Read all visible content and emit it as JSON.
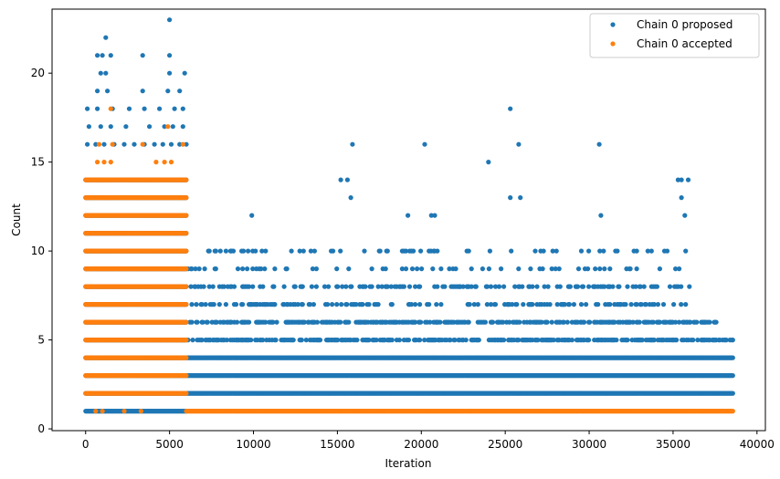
{
  "chart_data": {
    "type": "scatter",
    "title": "",
    "xlabel": "Iteration",
    "ylabel": "Count",
    "xlim": [
      -2000,
      40500
    ],
    "ylim": [
      -0.1,
      23.6
    ],
    "xticks": [
      0,
      5000,
      10000,
      15000,
      20000,
      25000,
      30000,
      35000,
      40000
    ],
    "yticks": [
      0,
      5,
      10,
      15,
      20
    ],
    "legend_position": "top-right",
    "series": [
      {
        "name": "Chain 0 proposed",
        "color": "#1f77b4",
        "bands": [
          {
            "y": 1,
            "x_start": 0,
            "x_end": 6000
          },
          {
            "y": 2,
            "x_start": 0,
            "x_end": 38600
          },
          {
            "y": 3,
            "x_start": 0,
            "x_end": 38600
          },
          {
            "y": 4,
            "x_start": 0,
            "x_end": 38600
          },
          {
            "y": 5,
            "x_start": 0,
            "x_end": 38600
          },
          {
            "y": 6,
            "x_start": 0,
            "x_end": 37600
          },
          {
            "y": 7,
            "x_start": 0,
            "x_end": 36000
          },
          {
            "y": 8,
            "x_start": 0,
            "x_end": 36000
          },
          {
            "y": 9,
            "x_start": 0,
            "x_end": 36000
          },
          {
            "y": 10,
            "x_start": 0,
            "x_end": 35900
          },
          {
            "y": 11,
            "x_start": 0,
            "x_end": 6000
          },
          {
            "y": 12,
            "x_start": 0,
            "x_end": 6000
          },
          {
            "y": 13,
            "x_start": 0,
            "x_end": 6000
          },
          {
            "y": 14,
            "x_start": 0,
            "x_end": 6000
          }
        ],
        "points": [
          {
            "x": 1200,
            "y": 22
          },
          {
            "x": 5000,
            "y": 23
          },
          {
            "x": 700,
            "y": 21
          },
          {
            "x": 1000,
            "y": 21
          },
          {
            "x": 1500,
            "y": 21
          },
          {
            "x": 3400,
            "y": 21
          },
          {
            "x": 5000,
            "y": 21
          },
          {
            "x": 5000,
            "y": 20
          },
          {
            "x": 5900,
            "y": 20
          },
          {
            "x": 900,
            "y": 20
          },
          {
            "x": 1200,
            "y": 20
          },
          {
            "x": 700,
            "y": 19
          },
          {
            "x": 1300,
            "y": 19
          },
          {
            "x": 3400,
            "y": 19
          },
          {
            "x": 4900,
            "y": 19
          },
          {
            "x": 5600,
            "y": 19
          },
          {
            "x": 100,
            "y": 18
          },
          {
            "x": 700,
            "y": 18
          },
          {
            "x": 1600,
            "y": 18
          },
          {
            "x": 2600,
            "y": 18
          },
          {
            "x": 3500,
            "y": 18
          },
          {
            "x": 4400,
            "y": 18
          },
          {
            "x": 5300,
            "y": 18
          },
          {
            "x": 5800,
            "y": 18
          },
          {
            "x": 200,
            "y": 17
          },
          {
            "x": 900,
            "y": 17
          },
          {
            "x": 1500,
            "y": 17
          },
          {
            "x": 2400,
            "y": 17
          },
          {
            "x": 3800,
            "y": 17
          },
          {
            "x": 4700,
            "y": 17
          },
          {
            "x": 5200,
            "y": 17
          },
          {
            "x": 5800,
            "y": 17
          },
          {
            "x": 100,
            "y": 16
          },
          {
            "x": 600,
            "y": 16
          },
          {
            "x": 1100,
            "y": 16
          },
          {
            "x": 1700,
            "y": 16
          },
          {
            "x": 2300,
            "y": 16
          },
          {
            "x": 2900,
            "y": 16
          },
          {
            "x": 3500,
            "y": 16
          },
          {
            "x": 4100,
            "y": 16
          },
          {
            "x": 4600,
            "y": 16
          },
          {
            "x": 5100,
            "y": 16
          },
          {
            "x": 5600,
            "y": 16
          },
          {
            "x": 6000,
            "y": 16
          },
          {
            "x": 15900,
            "y": 16
          },
          {
            "x": 20200,
            "y": 16
          },
          {
            "x": 25800,
            "y": 16
          },
          {
            "x": 30600,
            "y": 16
          },
          {
            "x": 24000,
            "y": 15
          },
          {
            "x": 25300,
            "y": 18
          },
          {
            "x": 15200,
            "y": 14
          },
          {
            "x": 15600,
            "y": 14
          },
          {
            "x": 35300,
            "y": 14
          },
          {
            "x": 35500,
            "y": 14
          },
          {
            "x": 35900,
            "y": 14
          },
          {
            "x": 15800,
            "y": 13
          },
          {
            "x": 25300,
            "y": 13
          },
          {
            "x": 25900,
            "y": 13
          },
          {
            "x": 35500,
            "y": 13
          },
          {
            "x": 9900,
            "y": 12
          },
          {
            "x": 19200,
            "y": 12
          },
          {
            "x": 20600,
            "y": 12
          },
          {
            "x": 20800,
            "y": 12
          },
          {
            "x": 30700,
            "y": 12
          },
          {
            "x": 35700,
            "y": 12
          }
        ]
      },
      {
        "name": "Chain 0 accepted",
        "color": "#ff7f0e",
        "bands": [
          {
            "y": 1,
            "x_start": 6000,
            "x_end": 38600
          },
          {
            "y": 2,
            "x_start": 0,
            "x_end": 6000
          },
          {
            "y": 3,
            "x_start": 0,
            "x_end": 6000
          },
          {
            "y": 4,
            "x_start": 0,
            "x_end": 6000
          },
          {
            "y": 5,
            "x_start": 0,
            "x_end": 6000
          },
          {
            "y": 6,
            "x_start": 0,
            "x_end": 6000
          },
          {
            "y": 7,
            "x_start": 0,
            "x_end": 6000
          },
          {
            "y": 8,
            "x_start": 0,
            "x_end": 6000
          },
          {
            "y": 9,
            "x_start": 0,
            "x_end": 6000
          },
          {
            "y": 10,
            "x_start": 0,
            "x_end": 6000
          },
          {
            "y": 11,
            "x_start": 0,
            "x_end": 6000
          },
          {
            "y": 12,
            "x_start": 0,
            "x_end": 6000
          },
          {
            "y": 13,
            "x_start": 0,
            "x_end": 6000
          },
          {
            "y": 14,
            "x_start": 0,
            "x_end": 6000
          }
        ],
        "points": [
          {
            "x": 1500,
            "y": 18
          },
          {
            "x": 4900,
            "y": 17
          },
          {
            "x": 800,
            "y": 16
          },
          {
            "x": 1600,
            "y": 16
          },
          {
            "x": 3400,
            "y": 16
          },
          {
            "x": 5800,
            "y": 16
          },
          {
            "x": 700,
            "y": 15
          },
          {
            "x": 1100,
            "y": 15
          },
          {
            "x": 1500,
            "y": 15
          },
          {
            "x": 4200,
            "y": 15
          },
          {
            "x": 4700,
            "y": 15
          },
          {
            "x": 5100,
            "y": 15
          },
          {
            "x": 600,
            "y": 1
          },
          {
            "x": 1000,
            "y": 1
          },
          {
            "x": 2300,
            "y": 1
          },
          {
            "x": 3300,
            "y": 1
          }
        ]
      }
    ]
  }
}
